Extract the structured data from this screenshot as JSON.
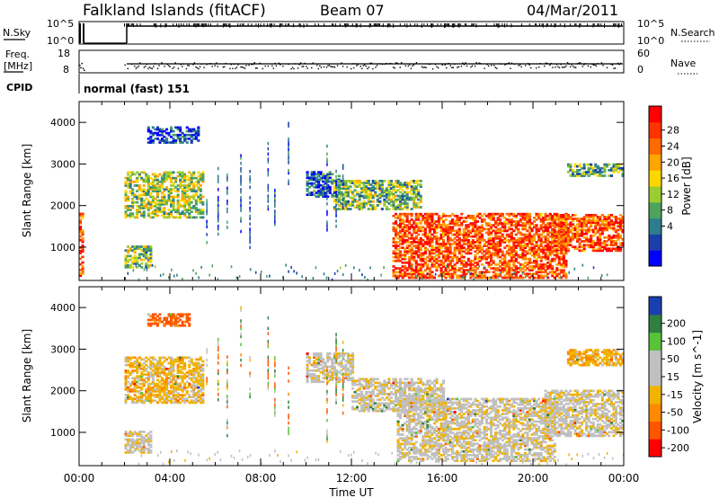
{
  "header": {
    "title": "Falkland Islands (fitACF)",
    "beam": "Beam 07",
    "date": "04/Mar/2011"
  },
  "top_panels": {
    "nsky": {
      "label": "N.Sky",
      "right_label": "N.Search",
      "left_ticks": [
        "10^5",
        "10^0"
      ],
      "right_ticks": [
        "10^5",
        "10^0"
      ]
    },
    "freq": {
      "label_line1": "Freq.",
      "label_line2": "[MHz]",
      "right_label": "Nave",
      "left_ticks": [
        "18",
        "8"
      ],
      "right_ticks": [
        "60",
        "0"
      ]
    },
    "cpid": {
      "label": "CPID",
      "text": "normal (fast) 151"
    }
  },
  "colors": {
    "power_scale": [
      "#0000ff",
      "#1b3fa8",
      "#2e7d8e",
      "#4fa35c",
      "#9acd32",
      "#ffd700",
      "#ffa500",
      "#ff6a00",
      "#ff3300",
      "#ff0000"
    ],
    "velocity_scale": [
      "#1a3fb0",
      "#2f7f3f",
      "#58c23a",
      "#c0c0c0",
      "#c0c0c0",
      "#f0b400",
      "#ff8a00",
      "#ff5500",
      "#ff0000"
    ]
  },
  "chart_data": [
    {
      "type": "heatmap",
      "name": "power",
      "ylabel": "Slant Range [km]",
      "yticks": [
        "1000",
        "2000",
        "3000",
        "4000"
      ],
      "ylim": [
        200,
        4500
      ],
      "xlim": [
        0,
        24
      ],
      "colorbar": {
        "label": "Power [dB]",
        "ticks": [
          "28",
          "24",
          "20",
          "16",
          "12",
          "8",
          "4"
        ],
        "range": [
          0,
          32
        ]
      },
      "echo_regions": [
        {
          "t0": 0.0,
          "t1": 0.2,
          "r0": 300,
          "r1": 1800,
          "level": 0.85
        },
        {
          "t0": 2.0,
          "t1": 5.4,
          "r0": 1700,
          "r1": 2800,
          "level": 0.45
        },
        {
          "t0": 3.0,
          "t1": 5.2,
          "r0": 3500,
          "r1": 3900,
          "level": 0.1
        },
        {
          "t0": 2.0,
          "t1": 3.2,
          "r0": 500,
          "r1": 1000,
          "level": 0.4
        },
        {
          "t0": 10.0,
          "t1": 11.4,
          "r0": 2200,
          "r1": 2800,
          "level": 0.15
        },
        {
          "t0": 11.2,
          "t1": 15.0,
          "r0": 1900,
          "r1": 2600,
          "level": 0.4
        },
        {
          "t0": 13.8,
          "t1": 21.5,
          "r0": 250,
          "r1": 1800,
          "level": 0.85
        },
        {
          "t0": 20.8,
          "t1": 24.0,
          "r0": 900,
          "r1": 1800,
          "level": 0.85
        },
        {
          "t0": 21.5,
          "t1": 24.0,
          "r0": 2700,
          "r1": 3000,
          "level": 0.35
        }
      ]
    },
    {
      "type": "heatmap",
      "name": "velocity",
      "ylabel": "Slant Range [km]",
      "xlabel": "Time UT",
      "xticks": [
        "00:00",
        "04:00",
        "08:00",
        "12:00",
        "16:00",
        "20:00",
        "00:00"
      ],
      "yticks": [
        "1000",
        "2000",
        "3000",
        "4000"
      ],
      "ylim": [
        200,
        4500
      ],
      "xlim": [
        0,
        24
      ],
      "colorbar": {
        "label": "Velocity [m s^-1]",
        "ticks": [
          "200",
          "100",
          "50",
          "15",
          "-15",
          "-50",
          "-100",
          "-200"
        ],
        "range": [
          -250,
          250
        ]
      },
      "echo_regions": [
        {
          "t0": 2.0,
          "t1": 5.4,
          "r0": 1700,
          "r1": 2800,
          "level": -30
        },
        {
          "t0": 3.0,
          "t1": 4.8,
          "r0": 3550,
          "r1": 3850,
          "level": -120
        },
        {
          "t0": 2.0,
          "t1": 3.2,
          "r0": 500,
          "r1": 1000,
          "level": 0
        },
        {
          "t0": 10.0,
          "t1": 12.0,
          "r0": 2200,
          "r1": 2900,
          "level": 0
        },
        {
          "t0": 12.0,
          "t1": 16.0,
          "r0": 1500,
          "r1": 2300,
          "level": 0
        },
        {
          "t0": 14.0,
          "t1": 21.0,
          "r0": 300,
          "r1": 1800,
          "level": 0
        },
        {
          "t0": 20.5,
          "t1": 24.0,
          "r0": 900,
          "r1": 2000,
          "level": 0
        },
        {
          "t0": 21.5,
          "t1": 24.0,
          "r0": 2600,
          "r1": 3000,
          "level": -40
        }
      ]
    }
  ]
}
